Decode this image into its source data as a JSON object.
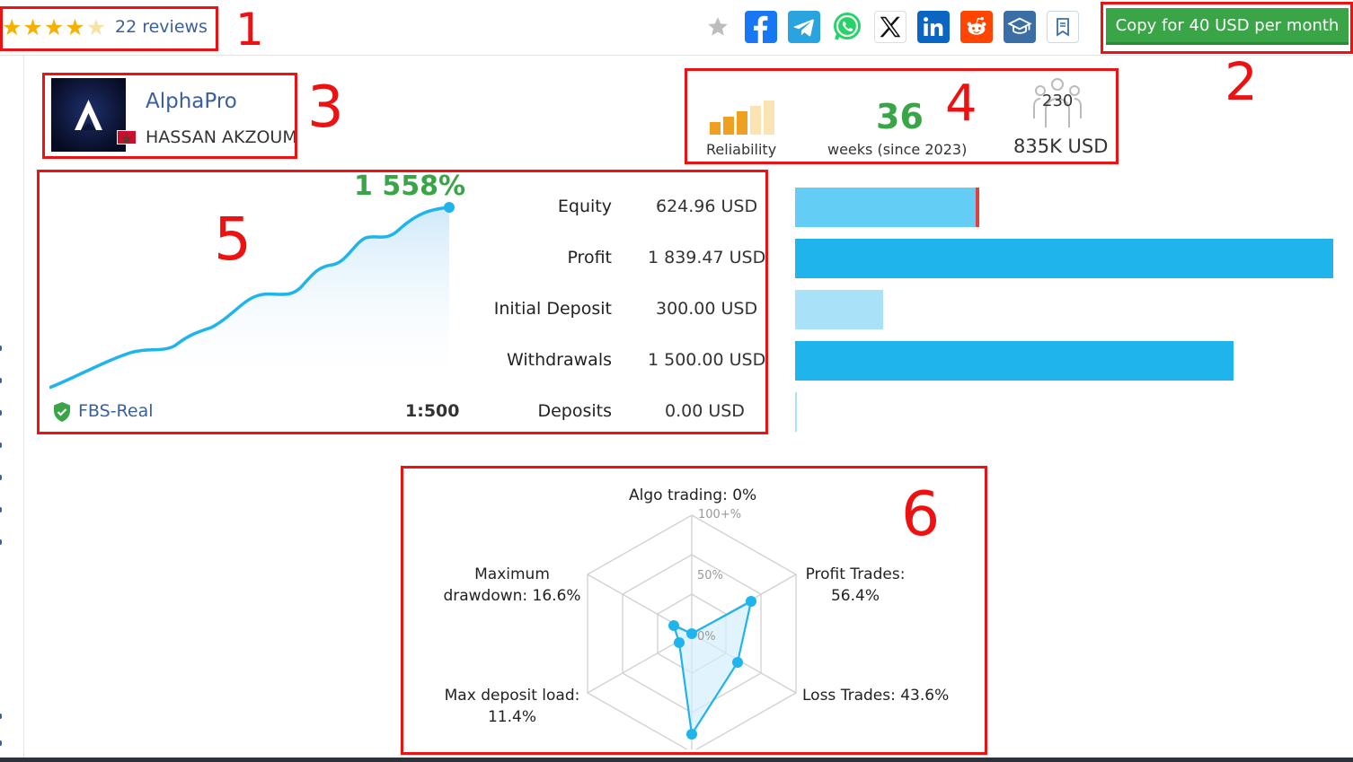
{
  "rating": {
    "stars_filled": 4,
    "stars_total": 5,
    "reviews_label": "22 reviews"
  },
  "share_icons": [
    "star-icon",
    "facebook-icon",
    "telegram-icon",
    "whatsapp-icon",
    "x-icon",
    "linkedin-icon",
    "reddit-icon",
    "education-icon",
    "bookmark-icon"
  ],
  "copy_button": {
    "label": "Copy for 40 USD per month"
  },
  "provider": {
    "name": "AlphaPro",
    "author": "HASSAN AKZOUM",
    "avatar_letter": "A"
  },
  "stats": {
    "reliability_label": "Reliability",
    "weeks_value": "36",
    "weeks_label": "weeks (since 2023)",
    "subscribers": "230",
    "funds": "835K USD"
  },
  "growth_chart": {
    "growth_label": "1 558%",
    "broker": "FBS-Real",
    "leverage": "1:500"
  },
  "metrics": [
    {
      "label": "Equity",
      "value": "624.96 USD",
      "bar_fraction": 0.34
    },
    {
      "label": "Profit",
      "value": "1 839.47 USD",
      "bar_fraction": 1.0
    },
    {
      "label": "Initial Deposit",
      "value": "300.00 USD",
      "bar_fraction": 0.163
    },
    {
      "label": "Withdrawals",
      "value": "1 500.00 USD",
      "bar_fraction": 0.815
    },
    {
      "label": "Deposits",
      "value": "0.00 USD",
      "bar_fraction": 0.0
    }
  ],
  "radar": {
    "scale_max": "100+%",
    "scale_mid": "50%",
    "scale_zero": "0%",
    "algo": "Algo trading: 0%",
    "profit_1": "Profit Trades:",
    "profit_2": "56.4%",
    "loss": "Loss Trades: 43.6%",
    "deposit_1": "Max deposit load:",
    "deposit_2": "11.4%",
    "drawdown_1": "Maximum",
    "drawdown_2": "drawdown: 16.6%"
  },
  "annotations": [
    "1",
    "2",
    "3",
    "4",
    "5",
    "6"
  ],
  "colors": {
    "green": "#3aa547",
    "blue": "#1fb4ec",
    "link": "#3a5f9a",
    "annotation_red": "#ee1111",
    "star": "#f5b100"
  }
}
